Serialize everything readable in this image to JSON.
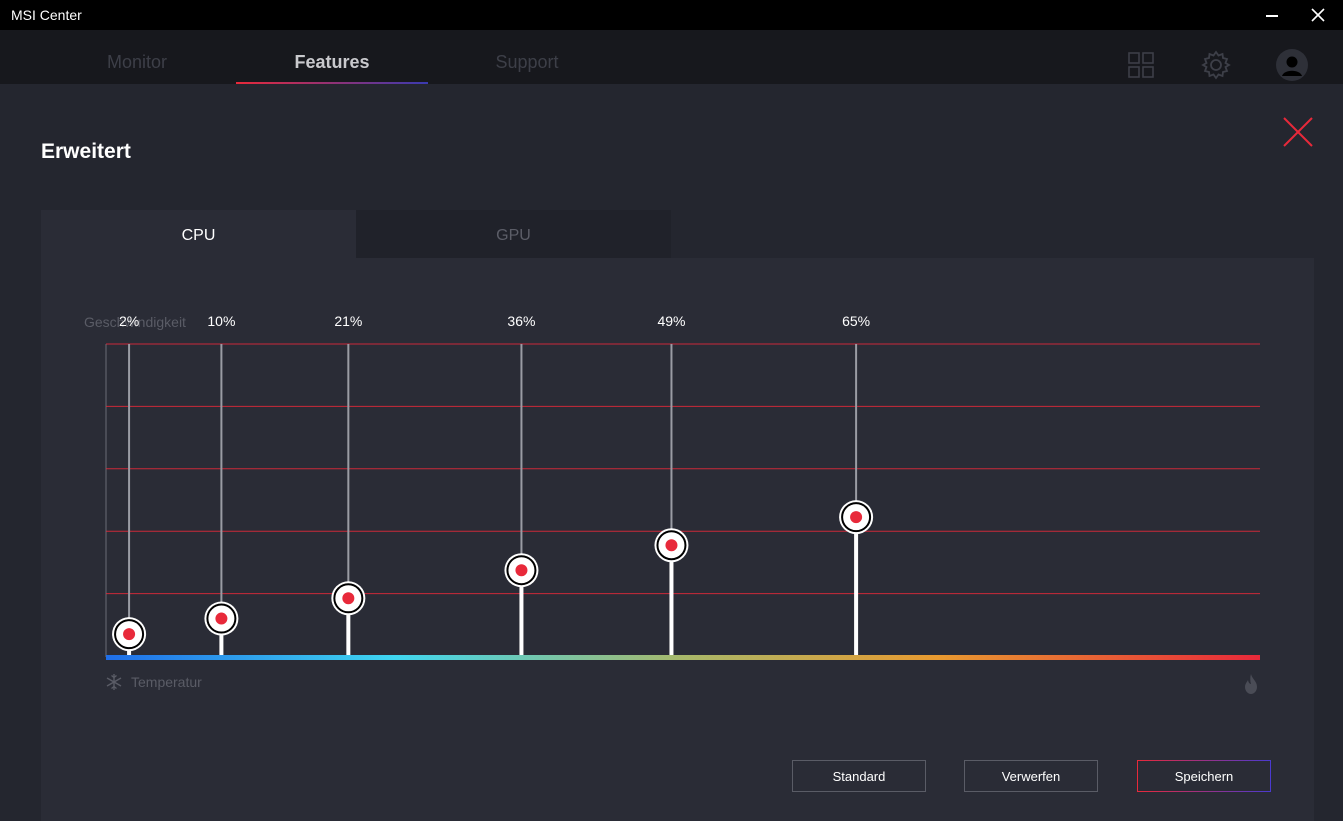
{
  "app": {
    "title": "MSI Center"
  },
  "nav": {
    "tabs": [
      {
        "label": "Monitor",
        "active": false
      },
      {
        "label": "Features",
        "active": true
      },
      {
        "label": "Support",
        "active": false
      }
    ],
    "icons": [
      "grid-icon",
      "gear-icon",
      "avatar-icon"
    ]
  },
  "panel": {
    "title": "Erweitert",
    "subtabs": [
      {
        "label": "CPU",
        "active": true
      },
      {
        "label": "GPU",
        "active": false
      }
    ]
  },
  "chart_data": {
    "type": "line",
    "ylabel": "Geschwindigkeit",
    "xlabel": "Temperatur",
    "gridlines": 5,
    "accent_color": "#e8293a",
    "points": [
      {
        "label": "2%",
        "x": 2,
        "y": 7
      },
      {
        "label": "10%",
        "x": 10,
        "y": 12
      },
      {
        "label": "21%",
        "x": 21,
        "y": 18.5
      },
      {
        "label": "36%",
        "x": 36,
        "y": 27.5
      },
      {
        "label": "49%",
        "x": 49,
        "y": 35.5
      },
      {
        "label": "65%",
        "x": 65,
        "y": 44.5
      }
    ]
  },
  "buttons": {
    "standard": "Standard",
    "discard": "Verwerfen",
    "save": "Speichern"
  }
}
